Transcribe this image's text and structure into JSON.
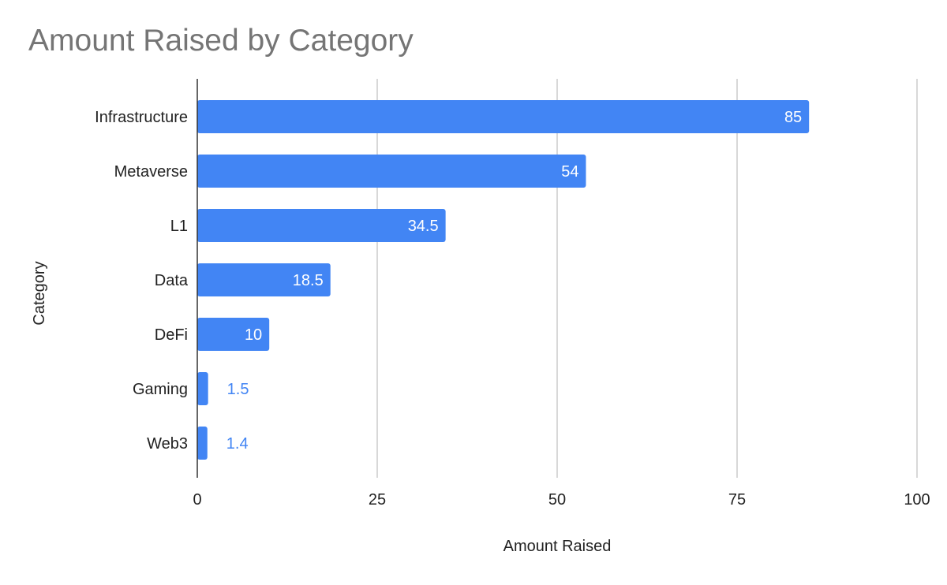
{
  "chart_data": {
    "type": "bar",
    "orientation": "horizontal",
    "title": "Amount Raised by Category",
    "xlabel": "Amount Raised",
    "ylabel": "Category",
    "categories": [
      "Infrastructure",
      "Metaverse",
      "L1",
      "Data",
      "DeFi",
      "Gaming",
      "Web3"
    ],
    "values": [
      85,
      54,
      34.5,
      18.5,
      10,
      1.5,
      1.4
    ],
    "data_labels": [
      "85",
      "54",
      "34.5",
      "18.5",
      "10",
      "1.5",
      "1.4"
    ],
    "xlim": [
      0,
      100
    ],
    "x_ticks": [
      0,
      25,
      50,
      75,
      100
    ],
    "x_tick_labels": [
      "0",
      "25",
      "50",
      "75",
      "100"
    ],
    "grid": true,
    "legend": "none",
    "colors": {
      "bar": "#4285f4",
      "label_inside": "#ffffff",
      "label_outside": "#4285f4",
      "grid": "#cccccc",
      "axis": "#333333",
      "title": "#757575",
      "text": "#222222"
    }
  }
}
